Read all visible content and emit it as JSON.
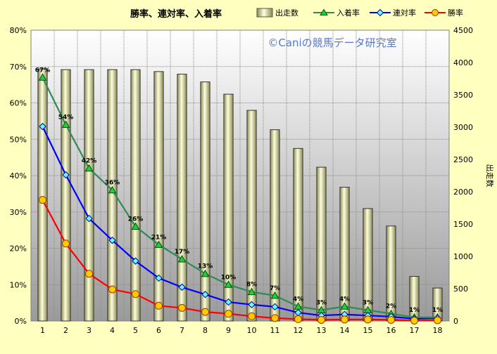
{
  "chart_data": {
    "type": "bar+line",
    "title": "勝率、連対率、入着率",
    "watermark": "©Caniの競馬データ研究室",
    "categories": [
      "1",
      "2",
      "3",
      "4",
      "5",
      "6",
      "7",
      "8",
      "9",
      "10",
      "11",
      "12",
      "13",
      "14",
      "15",
      "16",
      "17",
      "18"
    ],
    "bar_series": {
      "name": "出走数",
      "axis": "right",
      "values": [
        3900,
        3890,
        3890,
        3890,
        3890,
        3860,
        3820,
        3700,
        3510,
        3260,
        2960,
        2670,
        2380,
        2070,
        1740,
        1470,
        690,
        510
      ]
    },
    "line_series": [
      {
        "name": "入着率",
        "color": "#2e8b57",
        "marker": "triangle",
        "values": [
          67,
          54,
          42,
          36,
          26,
          21,
          17,
          13,
          10,
          8,
          7,
          4,
          3,
          4,
          3,
          2,
          1,
          1
        ],
        "labels": [
          "67%",
          "54%",
          "42%",
          "36%",
          "26%",
          "21%",
          "17%",
          "13%",
          "10%",
          "8%",
          "7%",
          "4%",
          "3%",
          "4%",
          "3%",
          "2%",
          "1%",
          "1%"
        ]
      },
      {
        "name": "連対率",
        "color": "#0000ff",
        "marker": "diamond",
        "values": [
          53.5,
          40.2,
          28.2,
          22.2,
          16.5,
          11.8,
          9.3,
          7.3,
          5.2,
          4.5,
          3.9,
          2.3,
          1.5,
          1.8,
          1.5,
          1.2,
          0.6,
          0.8
        ]
      },
      {
        "name": "勝率",
        "color": "#ff0000",
        "marker": "circle",
        "values": [
          33.3,
          21.3,
          13.0,
          8.7,
          7.4,
          4.2,
          3.6,
          2.5,
          2.0,
          1.3,
          0.8,
          0.5,
          0.3,
          0.4,
          0.4,
          0.3,
          0.1,
          0.2
        ]
      }
    ],
    "left_axis": {
      "min": 0,
      "max": 80,
      "step": 10,
      "suffix": "%"
    },
    "right_axis": {
      "min": 0,
      "max": 4500,
      "step": 500,
      "label": "出走数"
    },
    "grid": true,
    "legend_position": "top-right"
  }
}
